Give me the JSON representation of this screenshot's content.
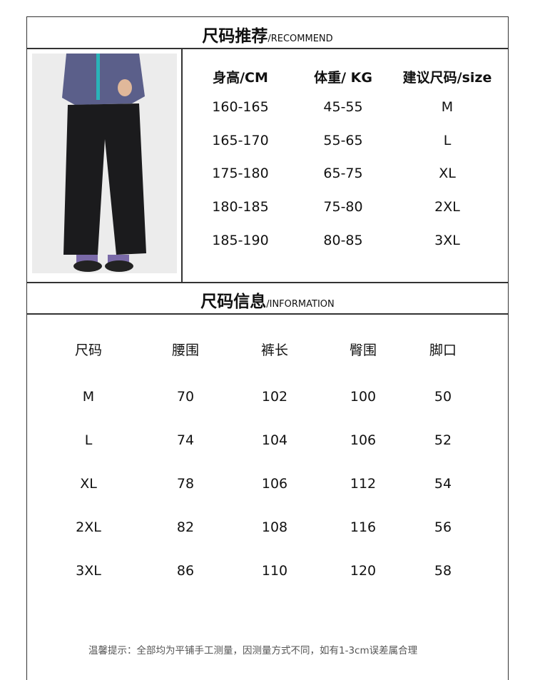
{
  "recommend": {
    "title": "尺码推荐",
    "subtitle": "/RECOMMEND",
    "headers": [
      "身高/CM",
      "体重/ KG",
      "建议尺码/size"
    ],
    "rows": [
      [
        "160-165",
        "45-55",
        "M"
      ],
      [
        "165-170",
        "55-65",
        "L"
      ],
      [
        "175-180",
        "65-75",
        "XL"
      ],
      [
        "180-185",
        "75-80",
        "2XL"
      ],
      [
        "185-190",
        "80-85",
        "3XL"
      ]
    ]
  },
  "information": {
    "title": "尺码信息",
    "subtitle": "/INFORMATION",
    "headers": [
      "尺码",
      "腰围",
      "裤长",
      "臀围",
      "脚口"
    ],
    "rows": [
      [
        "M",
        "70",
        "102",
        "100",
        "50"
      ],
      [
        "L",
        "74",
        "104",
        "106",
        "52"
      ],
      [
        "XL",
        "78",
        "106",
        "112",
        "54"
      ],
      [
        "2XL",
        "82",
        "108",
        "116",
        "56"
      ],
      [
        "3XL",
        "86",
        "110",
        "120",
        "58"
      ]
    ]
  },
  "footer_note": "温馨提示：全部均为平铺手工测量，因测量方式不同，如有1-3cm误差属合理"
}
